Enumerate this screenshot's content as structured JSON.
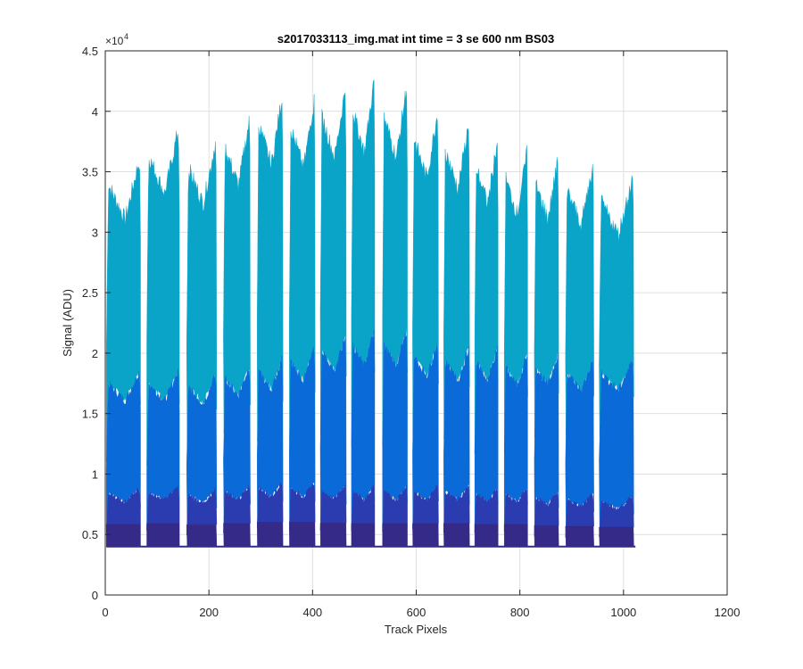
{
  "chart_data": {
    "type": "area",
    "title": "s2017033113_img.mat int time = 3 se  600 nm BS03",
    "xlabel": "Track Pixels",
    "ylabel": "Signal (ADU)",
    "y_exponent_base": "×10",
    "y_exponent_power": "4",
    "xlim": [
      0,
      1200
    ],
    "ylim": [
      0,
      45000
    ],
    "x_ticks": [
      0,
      200,
      400,
      600,
      800,
      1000,
      1200
    ],
    "y_ticks": [
      0,
      5000,
      10000,
      15000,
      20000,
      25000,
      30000,
      35000,
      40000,
      45000
    ],
    "x_tick_labels": [
      "0",
      "200",
      "400",
      "600",
      "800",
      "1000",
      "1200"
    ],
    "y_tick_labels": [
      "0",
      "0.5",
      "1",
      "1.5",
      "2",
      "2.5",
      "3",
      "3.5",
      "4",
      "4.5"
    ],
    "grid": true,
    "baseline": 4000,
    "tracks": {
      "start_x": [
        2,
        80,
        157,
        228,
        293,
        355,
        415,
        475,
        535,
        593,
        653,
        713,
        770,
        828,
        888,
        953
      ],
      "end_x": [
        68,
        143,
        215,
        280,
        343,
        405,
        465,
        520,
        583,
        643,
        703,
        758,
        815,
        875,
        943,
        1020
      ],
      "peak_y": [
        36500,
        39000,
        38000,
        39800,
        41800,
        41500,
        42500,
        43000,
        42500,
        40500,
        39500,
        38000,
        37000,
        36500,
        36000,
        35000
      ],
      "mid_y": [
        19500,
        19500,
        19200,
        20000,
        20600,
        21500,
        22500,
        23000,
        23000,
        22000,
        21500,
        21500,
        21000,
        21000,
        20500,
        20500
      ],
      "low_y": [
        9300,
        9500,
        9200,
        9500,
        9800,
        9800,
        9600,
        9500,
        9500,
        9500,
        9500,
        9300,
        9300,
        9000,
        8800,
        8600
      ]
    },
    "series_colors": {
      "top": "#0aa4c8",
      "middle": "#0a6ad8",
      "lower": "#2b3bb0",
      "base": "#352a87"
    }
  }
}
